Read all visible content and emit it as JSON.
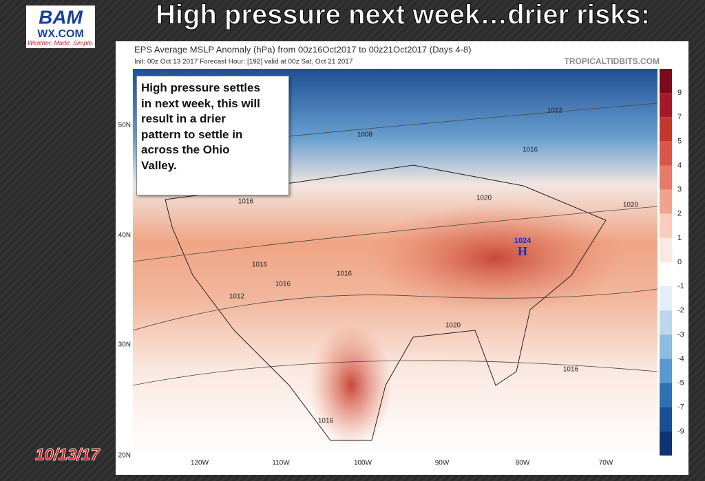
{
  "slide": {
    "title": "High pressure next week…drier risks:",
    "date": "10/13/17"
  },
  "logo": {
    "name": "BAM",
    "site": "WX.COM",
    "tagline": "Weather. Made. Simple."
  },
  "map": {
    "title": "EPS Average MSLP Anomaly (hPa) from 00z16Oct2017 to 00z21Oct2017 (Days 4-8)",
    "init": "Init: 00z Oct 13 2017   Forecast Hour: [192]   valid at 00z Sat, Oct 21 2017",
    "credit": "TROPICALTIDBITS.COM",
    "callout": [
      "High pressure settles",
      "in next week, this will",
      "result in a drier",
      "pattern to settle in",
      "across the Ohio",
      "Valley."
    ],
    "latitudes": [
      "50N",
      "40N",
      "30N",
      "20N"
    ],
    "longitudes": [
      "120W",
      "110W",
      "100W",
      "90W",
      "80W",
      "70W"
    ],
    "colorbar": [
      "9",
      "7",
      "5",
      "4",
      "3",
      "2",
      "1",
      "0",
      "-1",
      "-2",
      "-3",
      "-4",
      "-5",
      "-7",
      "-9"
    ],
    "isobars": [
      "1008",
      "1012",
      "1016",
      "1016",
      "1020",
      "1020",
      "1016",
      "1016",
      "1016",
      "1012",
      "1020",
      "1016",
      "1016"
    ],
    "high": {
      "pressure": "1024",
      "symbol": "H"
    }
  }
}
